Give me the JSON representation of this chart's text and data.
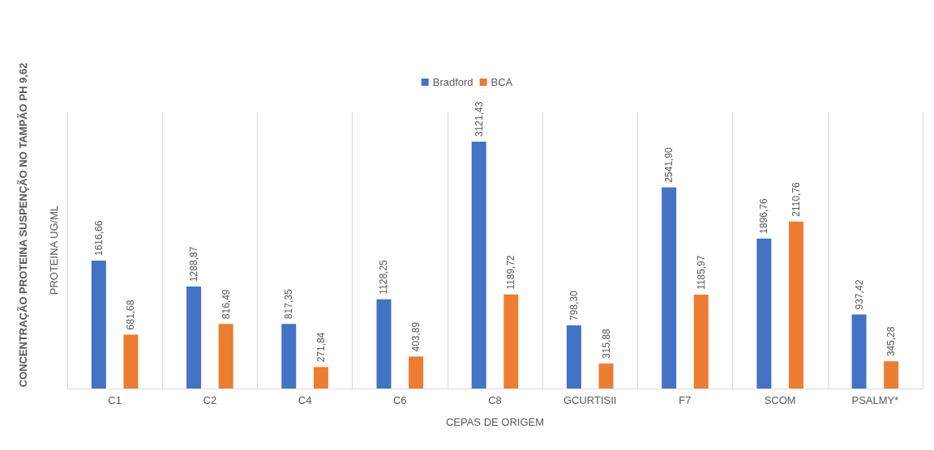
{
  "chart_data": {
    "type": "bar",
    "title": "CONCENTRAÇÃO PROTEINA SUSPENÇÃO NO TAMPÃO PH 9,62",
    "ylabel": "PROTEINA UG/ML",
    "xlabel": "CEPAS DE ORIGEM",
    "categories": [
      "C1",
      "C2",
      "C4",
      "C6",
      "C8",
      "GCURTISII",
      "F7",
      "SCOM",
      "PSALMY*"
    ],
    "series": [
      {
        "name": "Bradford",
        "color": "#4472c4",
        "values": [
          1616.66,
          1288.87,
          817.35,
          1128.25,
          3121.43,
          798.3,
          2541.9,
          1896.76,
          937.42
        ],
        "value_labels": [
          "1616,66",
          "1288,87",
          "817,35",
          "1128,25",
          "3121,43",
          "798,30",
          "2541,90",
          "1896,76",
          "937,42"
        ]
      },
      {
        "name": "BCA",
        "color": "#ed7d31",
        "values": [
          681.68,
          816.49,
          271.84,
          403.89,
          1189.72,
          315.88,
          1185.97,
          2110.76,
          345.28
        ],
        "value_labels": [
          "681,68",
          "816,49",
          "271,84",
          "403,89",
          "1189,72",
          "315,88",
          "1185,97",
          "2110,76",
          "345,28"
        ]
      }
    ],
    "grid": "x",
    "legend": "top"
  }
}
